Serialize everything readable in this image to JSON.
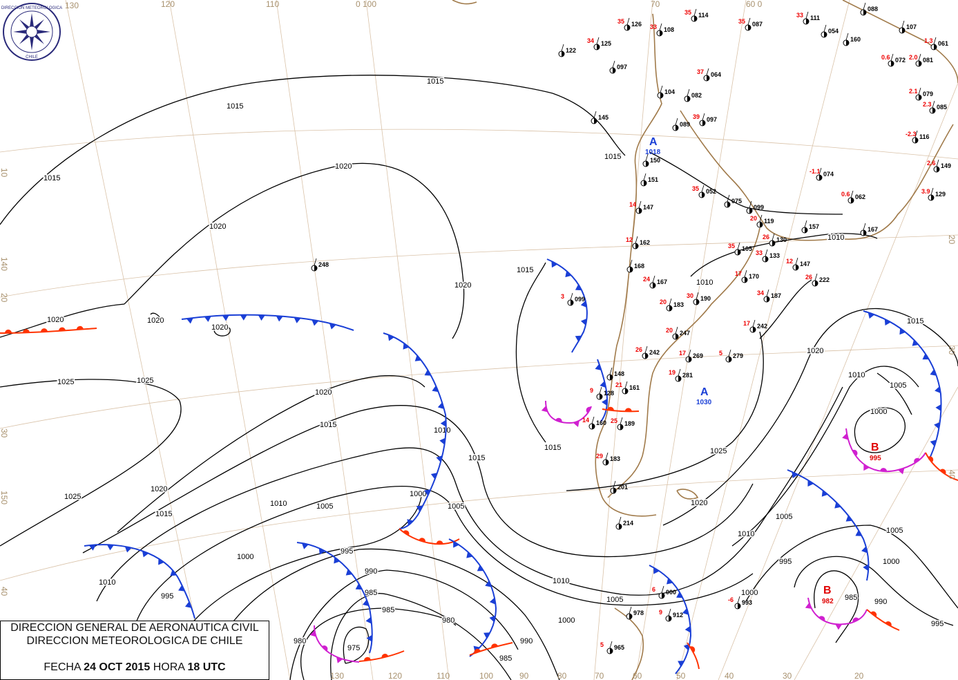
{
  "title_box": {
    "line1": "DIRECCION GENERAL DE AERONAUTICA CIVIL",
    "line2": "DIRECCION METEOROLOGICA DE CHILE",
    "date_label": "FECHA",
    "date": "24 OCT 2015",
    "hour_label": "HORA",
    "hour": "18 UTC"
  },
  "logo": {
    "text": "DIRECCION METEOROLOGICA CHILE",
    "color": "#2a2a7a"
  },
  "graticule_labels": {
    "top": [
      "130",
      "120",
      "110",
      "0 100",
      "70",
      "60 0"
    ],
    "bottom": [
      "130",
      "120",
      "110",
      "100",
      "90",
      "80",
      "70",
      "60",
      "50",
      "40",
      "30",
      "20"
    ],
    "left": [
      "10",
      "140",
      "20",
      "30",
      "150",
      "40"
    ],
    "right": [
      "20",
      "30",
      "40"
    ]
  },
  "isobar_labels": [
    "1015",
    "1015",
    "1015",
    "1015",
    "1020",
    "1020",
    "1020",
    "1020",
    "1020",
    "1020",
    "1025",
    "1025",
    "1025",
    "1020",
    "1020",
    "1015",
    "1015",
    "1015",
    "1010",
    "1010",
    "1010",
    "1010",
    "1005",
    "1005",
    "1005",
    "1000",
    "1000",
    "1000",
    "995",
    "995",
    "990",
    "990",
    "985",
    "985",
    "980",
    "980",
    "975",
    "1015",
    "1025",
    "1020",
    "1020",
    "1015",
    "1010",
    "1005",
    "1000",
    "1005",
    "1010",
    "1000",
    "995",
    "990",
    "985",
    "1005",
    "1000",
    "995",
    "1015",
    "1010",
    "1010",
    "985"
  ],
  "pressure_centers": [
    {
      "letter": "A",
      "value": "1018",
      "type": "high",
      "color": "#1a3fd6"
    },
    {
      "letter": "A",
      "value": "1030",
      "type": "high",
      "color": "#1a3fd6"
    },
    {
      "letter": "B",
      "value": "995",
      "type": "low",
      "color": "#e00000"
    },
    {
      "letter": "B",
      "value": "982",
      "type": "low",
      "color": "#e00000"
    }
  ],
  "colors": {
    "cold_front": "#1a3fd6",
    "warm_front": "#ff3300",
    "occluded_front": "#d020d0",
    "isobar": "#000000",
    "coastline": "#a07a4a"
  },
  "stations": [
    {
      "p": "248",
      "t": ""
    },
    {
      "p": "099",
      "t": "3"
    },
    {
      "p": "126",
      "t": "35"
    },
    {
      "p": "108",
      "t": "33"
    },
    {
      "p": "114",
      "t": "35"
    },
    {
      "p": "087",
      "t": "35"
    },
    {
      "p": "111",
      "t": "33"
    },
    {
      "p": "054",
      "t": ""
    },
    {
      "p": "160",
      "t": ""
    },
    {
      "p": "088",
      "t": ""
    },
    {
      "p": "125",
      "t": "34"
    },
    {
      "p": "122",
      "t": ""
    },
    {
      "p": "097",
      "t": ""
    },
    {
      "p": "064",
      "t": "37"
    },
    {
      "p": "104",
      "t": ""
    },
    {
      "p": "082",
      "t": ""
    },
    {
      "p": "145",
      "t": ""
    },
    {
      "p": "089",
      "t": ""
    },
    {
      "p": "097",
      "t": "39"
    },
    {
      "p": "150",
      "t": ""
    },
    {
      "p": "151",
      "t": ""
    },
    {
      "p": "147",
      "t": "14"
    },
    {
      "p": "162",
      "t": "12"
    },
    {
      "p": "168",
      "t": ""
    },
    {
      "p": "167",
      "t": "24"
    },
    {
      "p": "052",
      "t": "35"
    },
    {
      "p": "075",
      "t": ""
    },
    {
      "p": "099",
      "t": ""
    },
    {
      "p": "119",
      "t": "20"
    },
    {
      "p": "130",
      "t": "26"
    },
    {
      "p": "157",
      "t": ""
    },
    {
      "p": "105",
      "t": "35"
    },
    {
      "p": "133",
      "t": "33"
    },
    {
      "p": "147",
      "t": "12"
    },
    {
      "p": "170",
      "t": "17"
    },
    {
      "p": "187",
      "t": "34"
    },
    {
      "p": "222",
      "t": "26"
    },
    {
      "p": "190",
      "t": "30"
    },
    {
      "p": "183",
      "t": "20"
    },
    {
      "p": "242",
      "t": "17"
    },
    {
      "p": "247",
      "t": "20"
    },
    {
      "p": "242",
      "t": "26"
    },
    {
      "p": "269",
      "t": "17"
    },
    {
      "p": "279",
      "t": "5"
    },
    {
      "p": "281",
      "t": "19"
    },
    {
      "p": "161",
      "t": "21"
    },
    {
      "p": "148",
      "t": ""
    },
    {
      "p": "128",
      "t": "9"
    },
    {
      "p": "160",
      "t": "14"
    },
    {
      "p": "189",
      "t": "25"
    },
    {
      "p": "183",
      "t": "29"
    },
    {
      "p": "201",
      "t": ""
    },
    {
      "p": "214",
      "t": ""
    },
    {
      "p": "000",
      "t": "6"
    },
    {
      "p": "912",
      "t": "9"
    },
    {
      "p": "978",
      "t": ""
    },
    {
      "p": "965",
      "t": "5"
    },
    {
      "p": "993",
      "t": "-6"
    },
    {
      "p": "116",
      "t": "-2.3"
    },
    {
      "p": "149",
      "t": "2.6"
    },
    {
      "p": "129",
      "t": "3.9"
    },
    {
      "p": "062",
      "t": "0.6"
    },
    {
      "p": "074",
      "t": "-1.1"
    },
    {
      "p": "085",
      "t": "2.3"
    },
    {
      "p": "079",
      "t": "2.1"
    },
    {
      "p": "072",
      "t": "0.6"
    },
    {
      "p": "081",
      "t": "2.0"
    },
    {
      "p": "107",
      "t": ""
    },
    {
      "p": "061",
      "t": "1.3"
    },
    {
      "p": "167",
      "t": ""
    }
  ]
}
